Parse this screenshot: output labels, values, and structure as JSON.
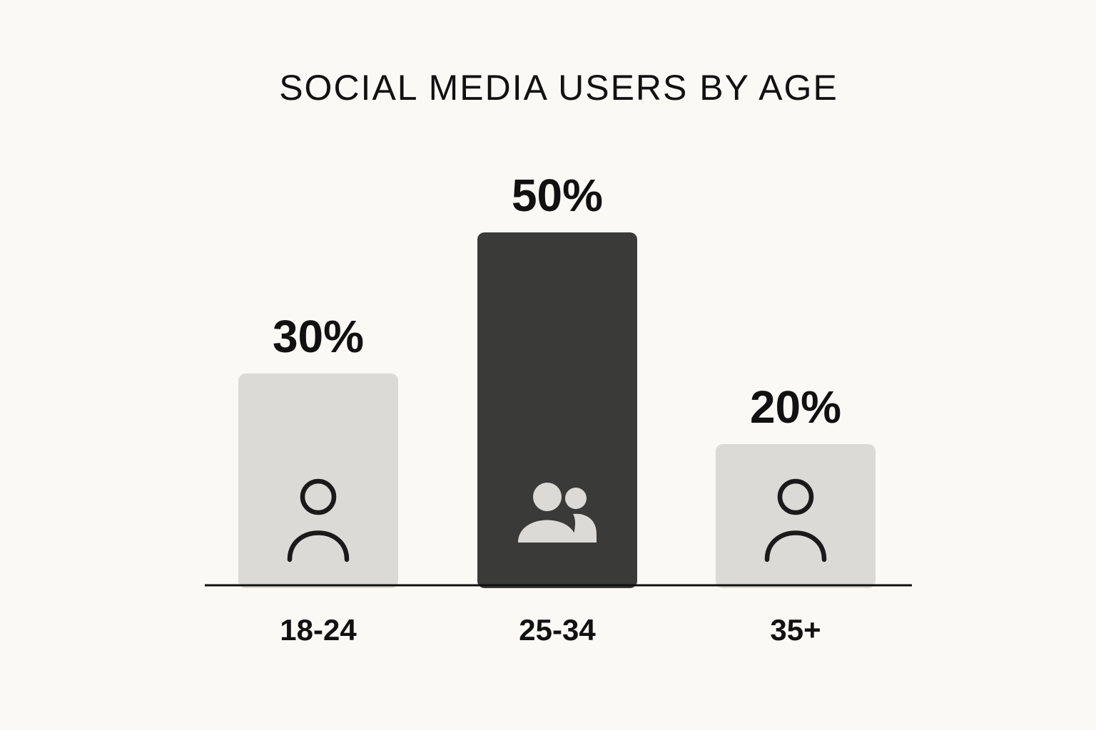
{
  "chart_data": {
    "type": "bar",
    "title": "SOCIAL MEDIA USERS BY AGE",
    "categories": [
      "18-24",
      "25-34",
      "35+"
    ],
    "values": [
      30,
      50,
      20
    ],
    "value_labels": [
      "30%",
      "50%",
      "20%"
    ],
    "unit": "%",
    "xlabel": "",
    "ylabel": "",
    "ylim": [
      0,
      50
    ],
    "grid": false,
    "legend": "none",
    "bar_colors": [
      "#dcdad6",
      "#3a3a38",
      "#dcdad6"
    ],
    "bar_icons": [
      "person-icon",
      "group-icon",
      "person-icon"
    ]
  },
  "colors": {
    "background": "#faf9f6",
    "light_bar": "#dcdad6",
    "dark_bar": "#3a3a38",
    "text": "#111111",
    "axis": "#111111"
  }
}
